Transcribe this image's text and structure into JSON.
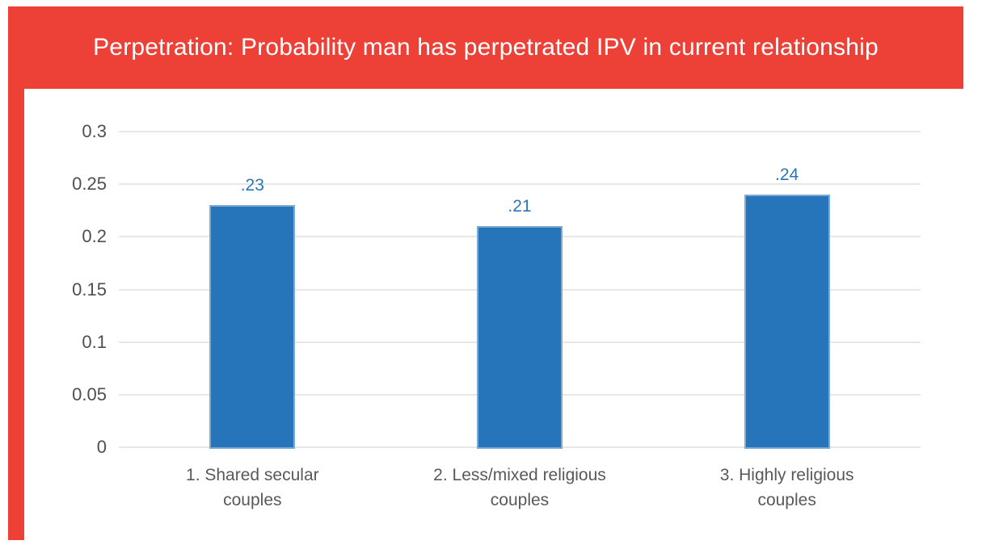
{
  "title": "Perpetration: Probability man has perpetrated IPV in current relationship",
  "colors": {
    "banner_red": "#ed4137",
    "bar_fill": "#2674b9",
    "bar_border": "#7fabd3",
    "value_label_blue": "#2e75b6",
    "gridline_gray": "#e7e7e7",
    "ytick_label_gray": "#4f4f4f",
    "category_label_gray": "#595959",
    "background": "#ffffff",
    "title_text": "#ffffff"
  },
  "chart_data": {
    "type": "bar",
    "title": "Perpetration: Probability man has perpetrated IPV in current relationship",
    "categories": [
      "1. Shared secular\ncouples",
      "2. Less/mixed religious\ncouples",
      "3. Highly religious\ncouples"
    ],
    "values": [
      0.23,
      0.21,
      0.24
    ],
    "value_labels": [
      ".23",
      ".21",
      ".24"
    ],
    "xlabel": "",
    "ylabel": "",
    "ylim": [
      0,
      0.3
    ],
    "yticks": [
      0,
      0.05,
      0.1,
      0.15,
      0.2,
      0.25,
      0.3
    ],
    "ytick_labels": [
      "0",
      "0.05",
      "0.1",
      "0.15",
      "0.2",
      "0.25",
      "0.3"
    ],
    "grid": true,
    "legend": false,
    "bar_color": "#2674b9"
  }
}
